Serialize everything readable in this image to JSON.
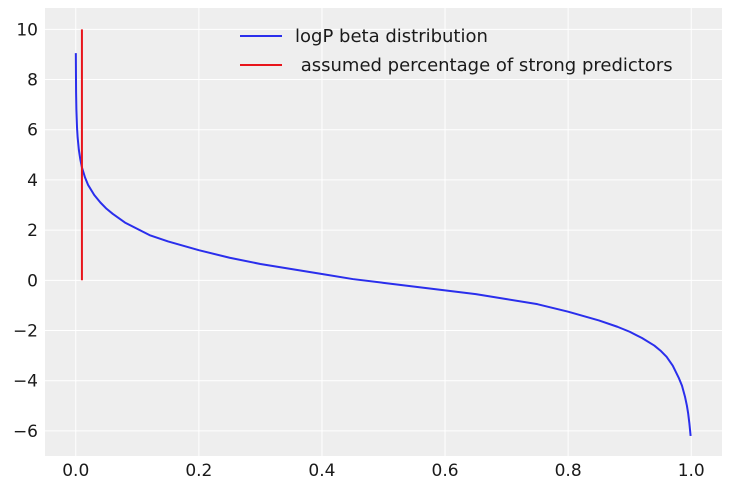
{
  "chart_data": {
    "type": "line",
    "title": "",
    "xlabel": "",
    "ylabel": "",
    "xlim": [
      -0.05,
      1.05
    ],
    "ylim": [
      -7,
      10.85
    ],
    "x_ticks": [
      0.0,
      0.2,
      0.4,
      0.6,
      0.8,
      1.0
    ],
    "x_tick_labels": [
      "0.0",
      "0.2",
      "0.4",
      "0.6",
      "0.8",
      "1.0"
    ],
    "y_ticks": [
      -6,
      -4,
      -2,
      0,
      2,
      4,
      6,
      8,
      10
    ],
    "y_tick_labels": [
      "−6",
      "−4",
      "−2",
      "0",
      "2",
      "4",
      "6",
      "8",
      "10"
    ],
    "grid": true,
    "background": "#eeeeee",
    "legend_position": "top-center",
    "series": [
      {
        "name": "logP beta distribution",
        "color": "#2a2eec",
        "x": [
          0.0001,
          0.0005,
          0.001,
          0.002,
          0.003,
          0.005,
          0.0075,
          0.01,
          0.015,
          0.02,
          0.03,
          0.04,
          0.05,
          0.06,
          0.08,
          0.1,
          0.12,
          0.15,
          0.2,
          0.25,
          0.3,
          0.35,
          0.4,
          0.45,
          0.5,
          0.55,
          0.6,
          0.65,
          0.7,
          0.75,
          0.8,
          0.85,
          0.88,
          0.9,
          0.92,
          0.94,
          0.95,
          0.96,
          0.97,
          0.98,
          0.985,
          0.99,
          0.993,
          0.995,
          0.997,
          0.998,
          0.999
        ],
        "y": [
          9.05,
          7.5,
          6.8,
          6.1,
          5.7,
          5.2,
          4.8,
          4.5,
          4.1,
          3.8,
          3.4,
          3.1,
          2.85,
          2.65,
          2.3,
          2.05,
          1.8,
          1.55,
          1.2,
          0.9,
          0.65,
          0.45,
          0.25,
          0.05,
          -0.1,
          -0.25,
          -0.4,
          -0.55,
          -0.75,
          -0.95,
          -1.25,
          -1.6,
          -1.85,
          -2.05,
          -2.3,
          -2.6,
          -2.8,
          -3.05,
          -3.4,
          -3.9,
          -4.2,
          -4.65,
          -5.0,
          -5.3,
          -5.7,
          -5.95,
          -6.2
        ]
      },
      {
        "name": " assumed percentage of strong predictors",
        "color": "#e8141b",
        "x": [
          0.01,
          0.01
        ],
        "y": [
          0,
          10
        ]
      }
    ]
  }
}
